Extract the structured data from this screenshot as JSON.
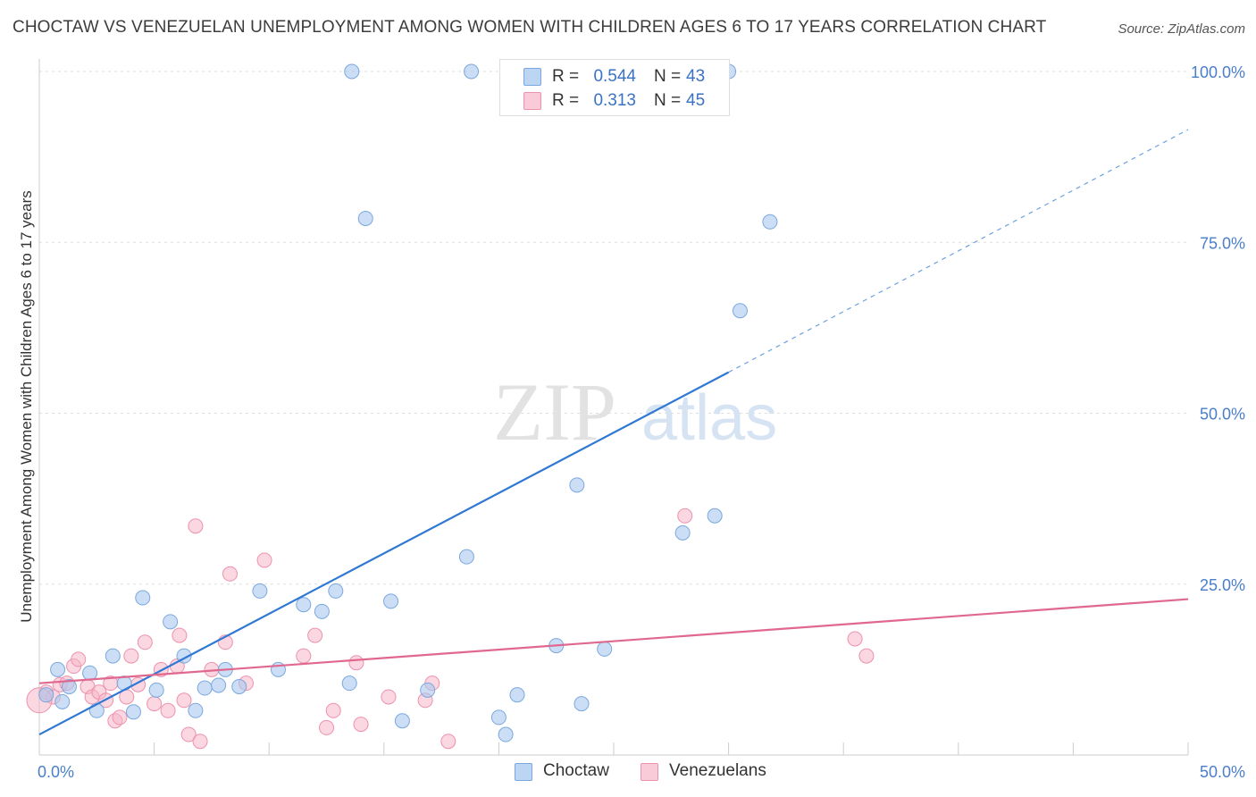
{
  "title": "CHOCTAW VS VENEZUELAN UNEMPLOYMENT AMONG WOMEN WITH CHILDREN AGES 6 TO 17 YEARS CORRELATION CHART",
  "source": "Source: ZipAtlas.com",
  "watermark": {
    "zip": "ZIP",
    "atlas": "atlas"
  },
  "legend_stats": [
    {
      "series": "Choctaw",
      "r_label": "R =",
      "r_value": "0.544",
      "n_label": "N =",
      "n_value": "43",
      "color": "#a8c8ef"
    },
    {
      "series": "Venezuelans",
      "r_label": "R =",
      "r_value": "0.313",
      "n_label": "N =",
      "n_value": "45",
      "color": "#f5b7c9"
    }
  ],
  "colors": {
    "choctaw_fill": "#a8c8ef",
    "choctaw_stroke": "#7aa8de",
    "choctaw_line": "#2f78d4",
    "venezuelan_fill": "#f5b7c9",
    "venezuelan_stroke": "#ee91ad",
    "venezuelan_line": "#e0688f",
    "tick_label": "#4a7ec9",
    "grid": "#dddddd"
  },
  "chart_data": {
    "type": "scatter",
    "title": "CHOCTAW VS VENEZUELAN UNEMPLOYMENT AMONG WOMEN WITH CHILDREN AGES 6 TO 17 YEARS CORRELATION CHART",
    "xlabel": "",
    "ylabel": "Unemployment Among Women with Children Ages 6 to 17 years",
    "xlim": [
      0,
      50
    ],
    "ylim": [
      0,
      105
    ],
    "x_tick_labels": [
      {
        "value": 0,
        "label": "0.0%"
      },
      {
        "value": 50,
        "label": "50.0%"
      }
    ],
    "y_tick_labels": [
      {
        "value": 25,
        "label": "25.0%"
      },
      {
        "value": 50,
        "label": "50.0%"
      },
      {
        "value": 75,
        "label": "75.0%"
      },
      {
        "value": 100,
        "label": "100.0%"
      }
    ],
    "legend_position": "bottom-center",
    "grid": true,
    "series": [
      {
        "name": "Choctaw",
        "points": [
          [
            0.3,
            8.8
          ],
          [
            0.8,
            12.5
          ],
          [
            1.0,
            7.8
          ],
          [
            1.3,
            10.0
          ],
          [
            2.2,
            12.0
          ],
          [
            2.5,
            6.5
          ],
          [
            3.2,
            14.5
          ],
          [
            3.7,
            10.5
          ],
          [
            4.1,
            6.3
          ],
          [
            4.5,
            23.0
          ],
          [
            5.1,
            9.5
          ],
          [
            5.7,
            19.5
          ],
          [
            6.3,
            14.5
          ],
          [
            6.8,
            6.5
          ],
          [
            7.2,
            9.8
          ],
          [
            7.8,
            10.2
          ],
          [
            8.1,
            12.5
          ],
          [
            8.7,
            10.0
          ],
          [
            9.6,
            24.0
          ],
          [
            10.4,
            12.5
          ],
          [
            11.5,
            22.0
          ],
          [
            12.3,
            21.0
          ],
          [
            12.9,
            24.0
          ],
          [
            13.5,
            10.5
          ],
          [
            14.2,
            78.5
          ],
          [
            15.3,
            22.5
          ],
          [
            15.8,
            5.0
          ],
          [
            16.9,
            9.5
          ],
          [
            18.6,
            29.0
          ],
          [
            20.0,
            5.5
          ],
          [
            20.3,
            3.0
          ],
          [
            20.8,
            8.8
          ],
          [
            22.5,
            16.0
          ],
          [
            23.4,
            39.5
          ],
          [
            23.6,
            7.5
          ],
          [
            24.6,
            15.5
          ],
          [
            28.0,
            32.5
          ],
          [
            29.4,
            35.0
          ],
          [
            30.5,
            65.0
          ],
          [
            31.8,
            78.0
          ],
          [
            13.6,
            100.0
          ],
          [
            18.8,
            100.0
          ],
          [
            30.0,
            100.0
          ]
        ]
      },
      {
        "name": "Venezuelans",
        "points": [
          [
            0.3,
            9.2
          ],
          [
            0.6,
            8.5
          ],
          [
            0.9,
            10.3
          ],
          [
            1.2,
            10.5
          ],
          [
            1.5,
            13.0
          ],
          [
            1.7,
            14.0
          ],
          [
            2.1,
            10.0
          ],
          [
            2.3,
            8.5
          ],
          [
            2.6,
            9.2
          ],
          [
            2.9,
            8.0
          ],
          [
            3.1,
            10.5
          ],
          [
            3.3,
            5.0
          ],
          [
            3.5,
            5.5
          ],
          [
            3.8,
            8.5
          ],
          [
            4.0,
            14.5
          ],
          [
            4.3,
            10.3
          ],
          [
            4.6,
            16.5
          ],
          [
            5.0,
            7.5
          ],
          [
            5.3,
            12.5
          ],
          [
            5.6,
            6.5
          ],
          [
            6.0,
            13.0
          ],
          [
            6.1,
            17.5
          ],
          [
            6.3,
            8.0
          ],
          [
            6.5,
            3.0
          ],
          [
            6.8,
            33.5
          ],
          [
            7.0,
            2.0
          ],
          [
            7.5,
            12.5
          ],
          [
            8.1,
            16.5
          ],
          [
            8.3,
            26.5
          ],
          [
            9.0,
            10.5
          ],
          [
            9.8,
            28.5
          ],
          [
            11.5,
            14.5
          ],
          [
            12.0,
            17.5
          ],
          [
            12.5,
            4.0
          ],
          [
            12.8,
            6.5
          ],
          [
            13.8,
            13.5
          ],
          [
            14.0,
            4.5
          ],
          [
            15.2,
            8.5
          ],
          [
            16.8,
            8.0
          ],
          [
            17.1,
            10.5
          ],
          [
            17.8,
            2.0
          ],
          [
            28.1,
            35.0
          ],
          [
            35.5,
            17.0
          ],
          [
            36.0,
            14.5
          ],
          [
            0.0,
            8.0
          ]
        ]
      }
    ],
    "trend_lines": [
      {
        "series": "Choctaw",
        "x_start": 0,
        "y_start": 3.0,
        "x_end": 30,
        "y_end": 56.0,
        "dashed_to_x": 50,
        "dashed_to_y": 91.5
      },
      {
        "series": "Venezuelans",
        "x_start": 0,
        "y_start": 10.5,
        "x_end": 50,
        "y_end": 22.8
      }
    ]
  }
}
